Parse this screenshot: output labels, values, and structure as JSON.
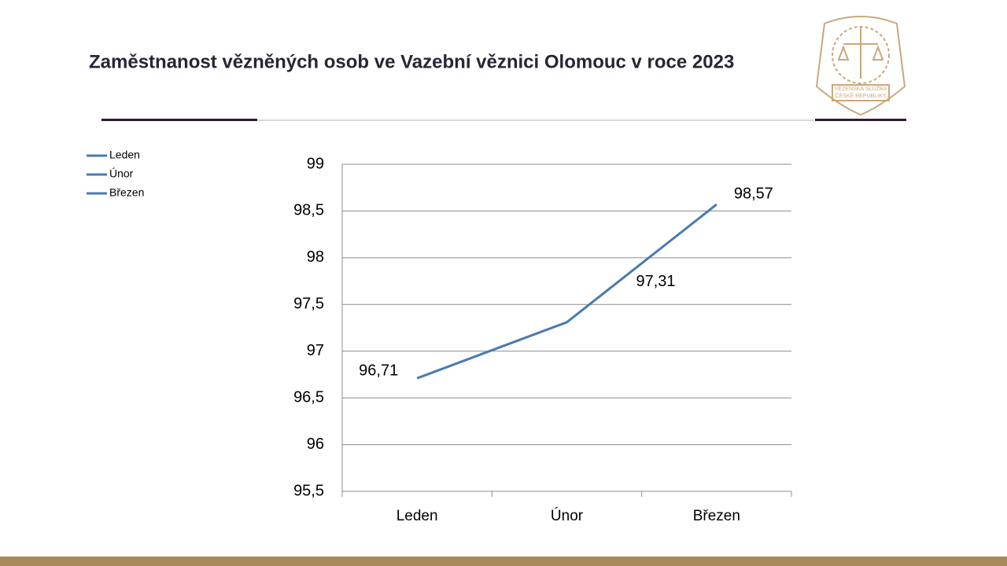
{
  "chart_data": {
    "type": "line",
    "title": "Zaměstnanost vězněných osob ve Vazební věznici Olomouc v roce 2023",
    "categories": [
      "Leden",
      "Únor",
      "Březen"
    ],
    "values": [
      96.71,
      97.31,
      98.57
    ],
    "value_labels": [
      "96,71",
      "97,31",
      "98,57"
    ],
    "color": "#4a7ab0",
    "legend": [
      "Leden",
      "Únor",
      "Březen"
    ],
    "legend_position": "top-left",
    "ylim": [
      95.5,
      99
    ],
    "yticks": [
      {
        "value": 95.5,
        "label": "95,5"
      },
      96,
      {
        "value": 96.5,
        "label": "96,5"
      },
      97,
      {
        "value": 97.5,
        "label": "97,5"
      },
      98,
      {
        "value": 98.5,
        "label": "98,5"
      },
      99
    ],
    "grid": true
  },
  "logo": {
    "lines": [
      "VĚZEŇSKÁ SLUŽBA",
      "ČESKÉ REPUBLIKY"
    ]
  }
}
